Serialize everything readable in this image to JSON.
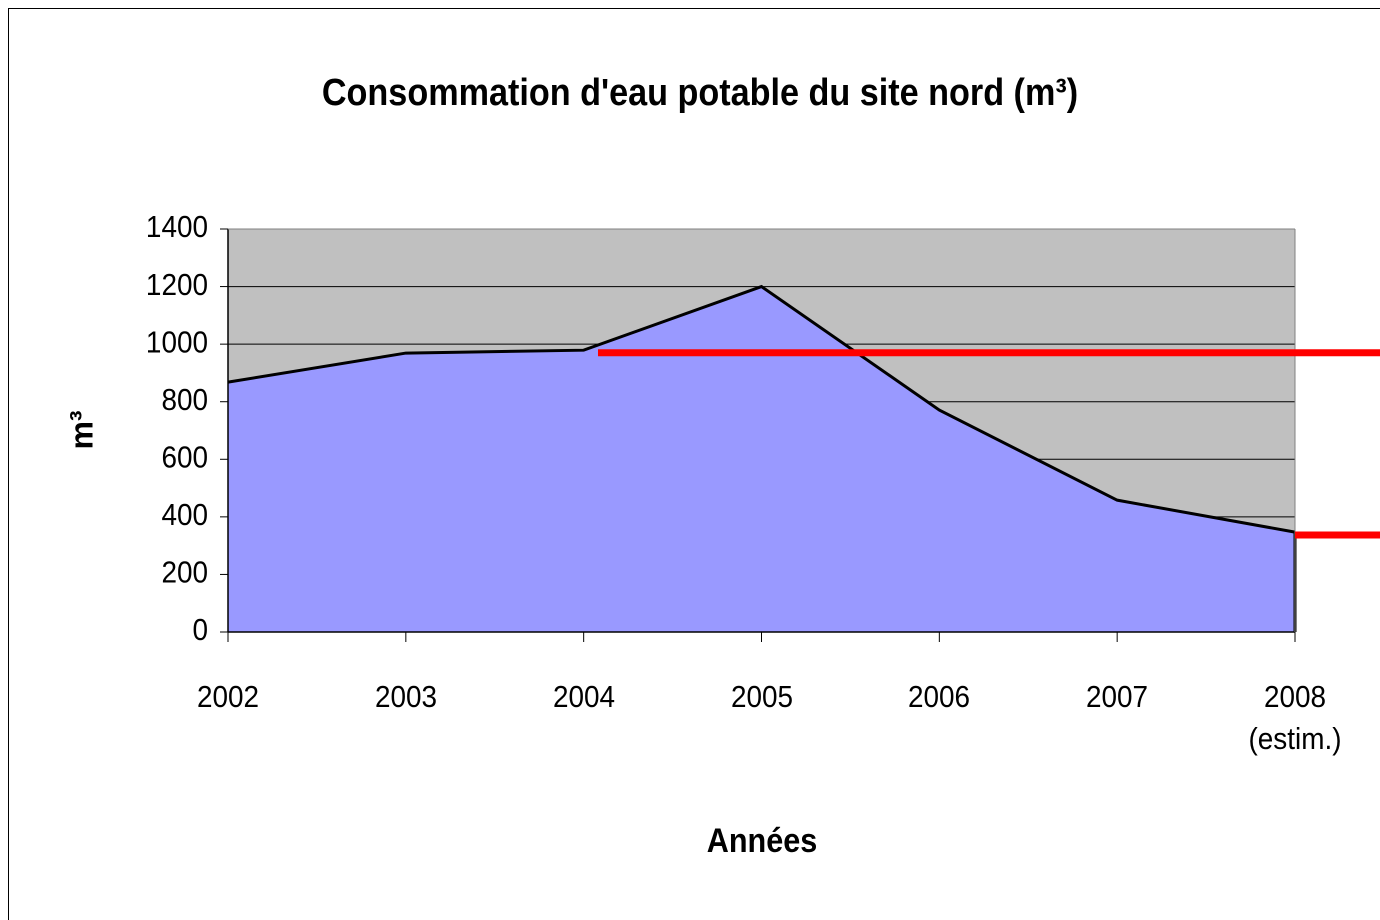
{
  "chart_data": {
    "type": "area",
    "title": "Consommation d'eau potable du site nord (m³)",
    "y_label": "m³",
    "x_label": "Années",
    "categories": [
      "2002",
      "2003",
      "2004",
      "2005",
      "2006",
      "2007",
      "2008\n(estim.)"
    ],
    "series": [
      {
        "color": "#9999ff",
        "values": [
          868,
          969,
          979,
          1200,
          771,
          458,
          347
        ]
      }
    ],
    "reference_lines": [
      {
        "value": 970,
        "color": "#ff0000"
      },
      {
        "value": 337,
        "color": "#ff0000"
      }
    ],
    "ylim": [
      0,
      1400
    ],
    "yticks": [
      0,
      200,
      400,
      600,
      800,
      1000,
      1200,
      1400
    ],
    "grid": true,
    "plot_background": "#c0c0c0"
  }
}
